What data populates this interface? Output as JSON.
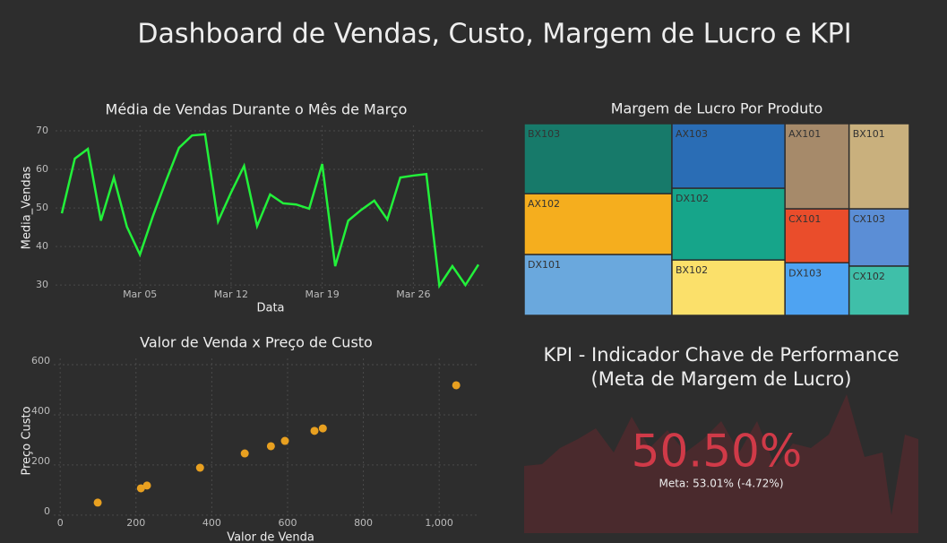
{
  "title": "Dashboard de Vendas, Custo, Margem de Lucro e KPI",
  "chart_data": [
    {
      "type": "line",
      "title": "Média de Vendas Durante o Mês de Março",
      "x_label": "Data",
      "y_label": "Media_Vendas",
      "color": "#22f03a",
      "x": [
        "Feb 27",
        "Feb 28",
        "Mar 01",
        "Mar 02",
        "Mar 03",
        "Mar 04",
        "Mar 05",
        "Mar 06",
        "Mar 07",
        "Mar 08",
        "Mar 09",
        "Mar 10",
        "Mar 11",
        "Mar 12",
        "Mar 13",
        "Mar 14",
        "Mar 15",
        "Mar 16",
        "Mar 17",
        "Mar 18",
        "Mar 19",
        "Mar 20",
        "Mar 21",
        "Mar 22",
        "Mar 23",
        "Mar 24",
        "Mar 25",
        "Mar 26",
        "Mar 27",
        "Mar 28",
        "Mar 29",
        "Mar 30",
        "Mar 31"
      ],
      "values": [
        48.6,
        62.8,
        65.3,
        46.7,
        57.9,
        45.1,
        37.9,
        47.9,
        57.0,
        65.6,
        68.8,
        69.1,
        46.5,
        54.0,
        60.9,
        45.3,
        53.5,
        51.2,
        50.9,
        49.8,
        61.4,
        34.9,
        46.7,
        49.5,
        51.9,
        47.0,
        57.9,
        58.4,
        58.8,
        29.8,
        34.9,
        30.0,
        35.3
      ],
      "xticks": [
        "Mar 05",
        "Mar 12",
        "Mar 19",
        "Mar 26"
      ],
      "ylim": [
        28.4,
        71.4
      ],
      "yticks": [
        30,
        40,
        50,
        60,
        70
      ],
      "grid": true
    },
    {
      "type": "treemap",
      "title": "Margem de Lucro Por Produto",
      "categories": [
        "BX103",
        "AX102",
        "DX101",
        "AX103",
        "DX102",
        "BX102",
        "AX101",
        "CX101",
        "DX103",
        "BX101",
        "CX103",
        "CX102"
      ],
      "values": [
        12.9,
        11.2,
        11.2,
        9.1,
        10.1,
        7.8,
        6.8,
        4.3,
        4.2,
        6.4,
        4.3,
        3.7
      ],
      "colors": [
        "#177a6a",
        "#f5ae1e",
        "#6aa8dd",
        "#2a6db5",
        "#16a58a",
        "#fbe06a",
        "#a68a6a",
        "#ea4d2b",
        "#4ea3f2",
        "#c9b07d",
        "#5b8ed6",
        "#3fbfa9"
      ]
    },
    {
      "type": "scatter",
      "title": "Valor de Venda x Preço de Custo",
      "x_label": "Valor de Venda",
      "y_label": "Preço Custo",
      "color": "#e8a020",
      "x": [
        99,
        213,
        229,
        369,
        487,
        556,
        593,
        671,
        693,
        1045
      ],
      "values": [
        50,
        107,
        118,
        189,
        246,
        275,
        296,
        336,
        346,
        518
      ],
      "xlim": [
        -17,
        1106
      ],
      "xticks": [
        0,
        200,
        400,
        600,
        800,
        {
          "value": 1000,
          "label": "1,000"
        }
      ],
      "ylim": [
        -54,
        625
      ],
      "yticks": [
        0,
        200,
        400,
        600
      ],
      "grid": true
    },
    {
      "type": "indicator",
      "title": [
        "KPI - Indicador Chave de Performance",
        "(Meta de Margem de Lucro)"
      ],
      "value": 50.5,
      "value_label": "50.50%",
      "subtitle": "Meta: 53.01% (-4.72%)",
      "color": "#d03a48"
    }
  ]
}
